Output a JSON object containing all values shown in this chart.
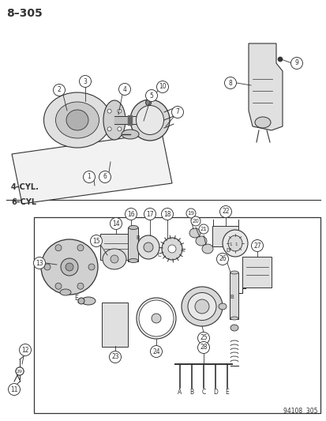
{
  "title": "8–305",
  "bg_color": "#ffffff",
  "fig_width": 4.14,
  "fig_height": 5.33,
  "dpi": 100,
  "footer_text": "94108  305",
  "section1_label": "4–CYL.",
  "section2_label": "6–CYL",
  "line_color": "#333333",
  "gray_light": "#d8d8d8",
  "gray_mid": "#b0b0b0",
  "gray_dark": "#888888"
}
